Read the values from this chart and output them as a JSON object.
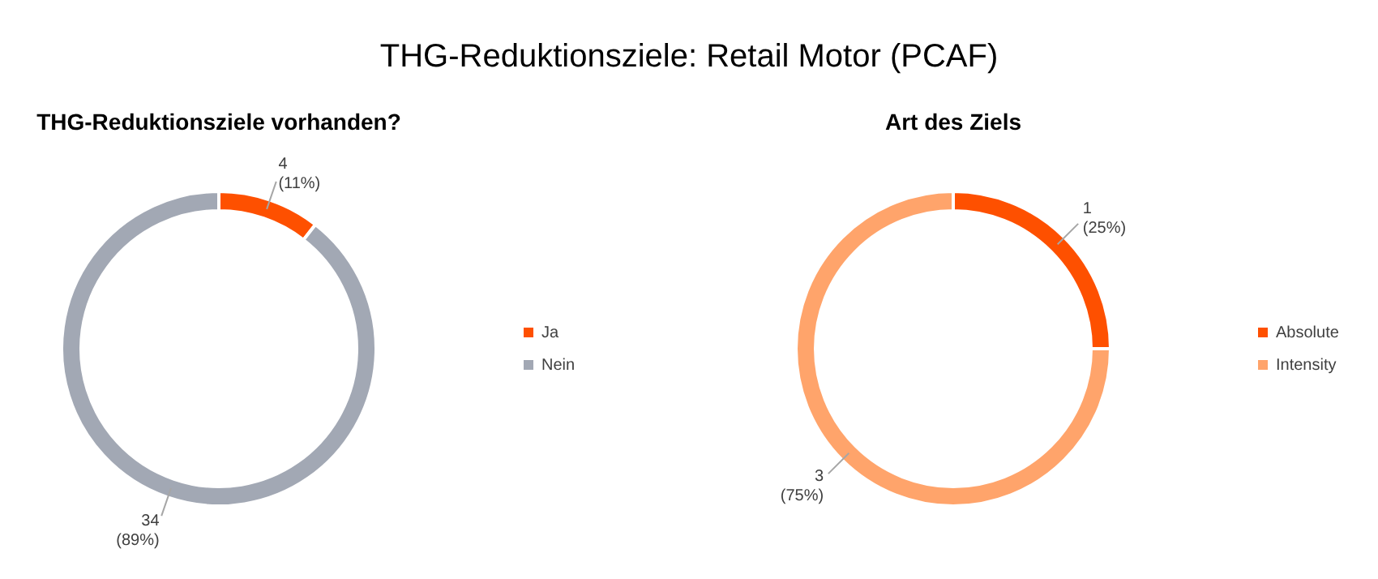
{
  "chart_data": [
    {
      "type": "other",
      "title": "THG-Reduktionsziele: Retail Motor (PCAF)"
    },
    {
      "type": "donut",
      "title": "THG-Reduktionsziele vorhanden?",
      "categories": [
        "Ja",
        "Nein"
      ],
      "values": [
        4,
        34
      ],
      "colors": [
        "#fe5000",
        "#a2a8b4"
      ],
      "value_labels": [
        "4\n(11%)",
        "34\n(89%)"
      ],
      "legend": "right"
    },
    {
      "type": "donut",
      "title": "Art des Ziels",
      "categories": [
        "Absolute",
        "Intensity"
      ],
      "values": [
        1,
        3
      ],
      "colors": [
        "#fe5000",
        "#ffa46b"
      ],
      "value_labels": [
        "1\n(25%)",
        "3\n(75%)"
      ],
      "legend": "right"
    }
  ]
}
